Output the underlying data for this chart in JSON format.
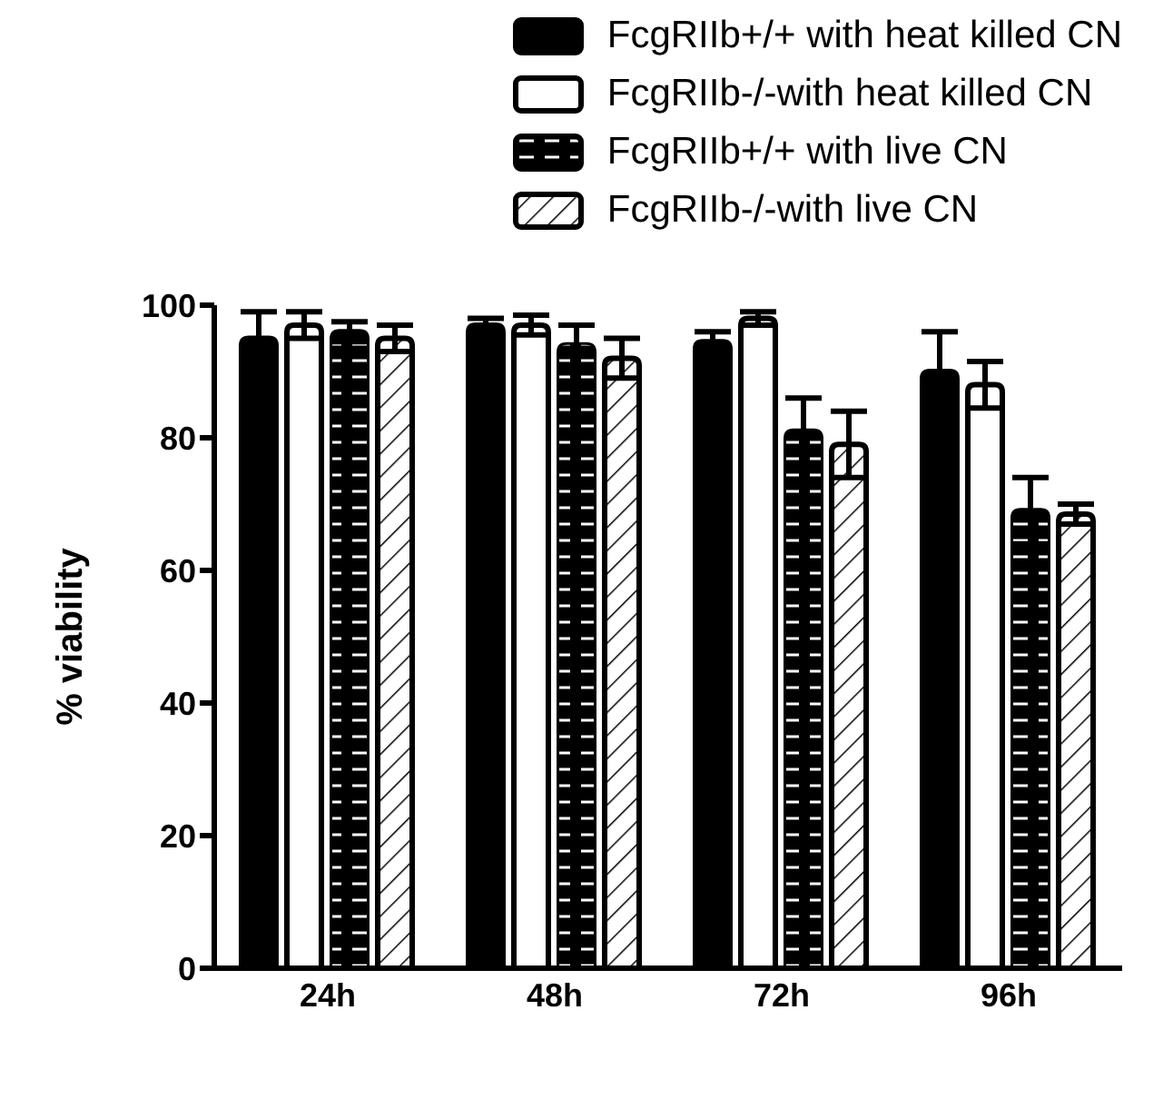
{
  "chart_data": {
    "type": "bar",
    "ylabel": "% viability",
    "categories": [
      "24h",
      "48h",
      "72h",
      "96h"
    ],
    "series": [
      {
        "name": "FcgRIIb+/+ with heat killed CN",
        "color": "#000000",
        "values": [
          95,
          97,
          94.5,
          90
        ],
        "errors": [
          4,
          1,
          1.5,
          6
        ]
      },
      {
        "name": "FcgRIIb-/-with heat killed CN",
        "color": "#ffffff",
        "values": [
          97,
          97,
          98,
          88
        ],
        "errors": [
          2,
          1.5,
          1,
          3.5
        ]
      },
      {
        "name": "FcgRIIb+/+ with live CN",
        "color": "#000000",
        "values": [
          96,
          94,
          81,
          69
        ],
        "errors": [
          1.5,
          3,
          5,
          5
        ]
      },
      {
        "name": "FcgRIIb-/-with live CN",
        "color": "#ffffff",
        "values": [
          95,
          92,
          79,
          68.5
        ],
        "errors": [
          2,
          3,
          5,
          1.5
        ]
      }
    ],
    "ylim": [
      0,
      100
    ],
    "yticks": [
      0,
      20,
      40,
      60,
      80,
      100
    ],
    "grid": false,
    "legend": "top right"
  }
}
